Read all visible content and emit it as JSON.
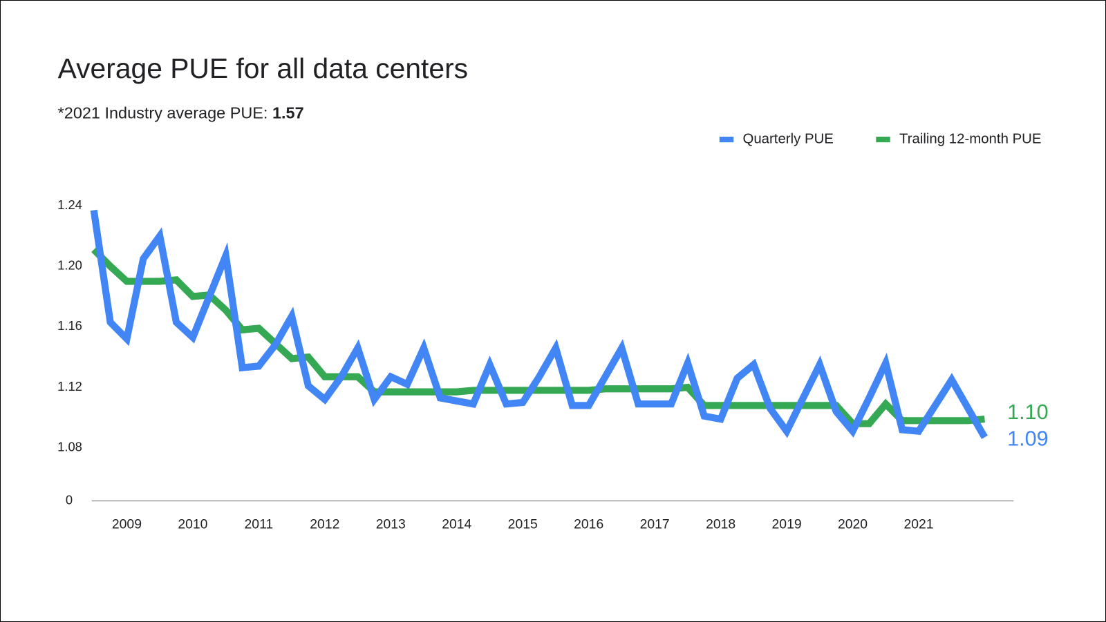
{
  "chart_data": {
    "type": "line",
    "title": "Average PUE for all data centers",
    "subtitle": {
      "text": "*2021 Industry average PUE:",
      "value": 1.57
    },
    "categories": [
      null,
      null,
      "2009",
      null,
      null,
      null,
      "2010",
      null,
      null,
      null,
      "2011",
      null,
      null,
      null,
      "2012",
      null,
      null,
      null,
      "2013",
      null,
      null,
      null,
      "2014",
      null,
      null,
      null,
      "2015",
      null,
      null,
      null,
      "2016",
      null,
      null,
      null,
      "2017",
      null,
      null,
      null,
      "2018",
      null,
      null,
      null,
      "2019",
      null,
      null,
      null,
      "2020",
      null,
      null,
      null,
      "2021",
      null,
      null,
      null,
      null
    ],
    "series": [
      {
        "name": "Quarterly PUE",
        "color": "#4285f4",
        "values": [
          1.237,
          1.163,
          1.152,
          1.205,
          1.22,
          1.163,
          1.153,
          1.18,
          1.207,
          1.133,
          1.134,
          1.148,
          1.167,
          1.121,
          1.112,
          1.127,
          1.146,
          1.112,
          1.127,
          1.122,
          1.146,
          1.113,
          1.111,
          1.109,
          1.135,
          1.109,
          1.11,
          1.127,
          1.146,
          1.108,
          1.108,
          1.127,
          1.146,
          1.109,
          1.109,
          1.109,
          1.136,
          1.101,
          1.099,
          1.126,
          1.135,
          1.106,
          1.091,
          1.113,
          1.135,
          1.104,
          1.091,
          1.113,
          1.136,
          1.092,
          1.091,
          1.108,
          1.125,
          1.106,
          1.087
        ],
        "value_labels": [
          null,
          null,
          null,
          null,
          null,
          null,
          null,
          null,
          null,
          null,
          null,
          null,
          null,
          null,
          null,
          null,
          null,
          null,
          null,
          null,
          null,
          null,
          null,
          null,
          null,
          null,
          null,
          null,
          null,
          null,
          null,
          null,
          null,
          null,
          null,
          null,
          null,
          null,
          null,
          null,
          null,
          null,
          null,
          null,
          null,
          null,
          null,
          null,
          null,
          null,
          null,
          null,
          null,
          null,
          "1.09"
        ]
      },
      {
        "name": "Trailing 12-month PUE",
        "color": "#34a853",
        "values": [
          1.211,
          1.2,
          1.19,
          1.19,
          1.19,
          1.191,
          1.18,
          1.181,
          1.171,
          1.158,
          1.159,
          1.149,
          1.139,
          1.14,
          1.127,
          1.127,
          1.127,
          1.117,
          1.117,
          1.117,
          1.117,
          1.117,
          1.117,
          1.118,
          1.118,
          1.118,
          1.118,
          1.118,
          1.118,
          1.118,
          1.118,
          1.119,
          1.119,
          1.119,
          1.119,
          1.119,
          1.12,
          1.108,
          1.108,
          1.108,
          1.108,
          1.108,
          1.108,
          1.108,
          1.108,
          1.108,
          1.096,
          1.096,
          1.109,
          1.098,
          1.098,
          1.098,
          1.098,
          1.098,
          1.099
        ],
        "value_labels": [
          null,
          null,
          null,
          null,
          null,
          null,
          null,
          null,
          null,
          null,
          null,
          null,
          null,
          null,
          null,
          null,
          null,
          null,
          null,
          null,
          null,
          null,
          null,
          null,
          null,
          null,
          null,
          null,
          null,
          null,
          null,
          null,
          null,
          null,
          null,
          null,
          null,
          null,
          null,
          null,
          null,
          null,
          null,
          null,
          null,
          null,
          null,
          null,
          null,
          null,
          null,
          null,
          null,
          null,
          "1.10"
        ]
      }
    ],
    "ylim": [
      1.045,
      1.24
    ],
    "yticks": [
      0,
      1.08,
      1.12,
      1.16,
      {
        "value": 1.2,
        "label": "1.20"
      },
      1.24
    ],
    "axis_break": true,
    "grid": false,
    "legend": "top-right"
  }
}
